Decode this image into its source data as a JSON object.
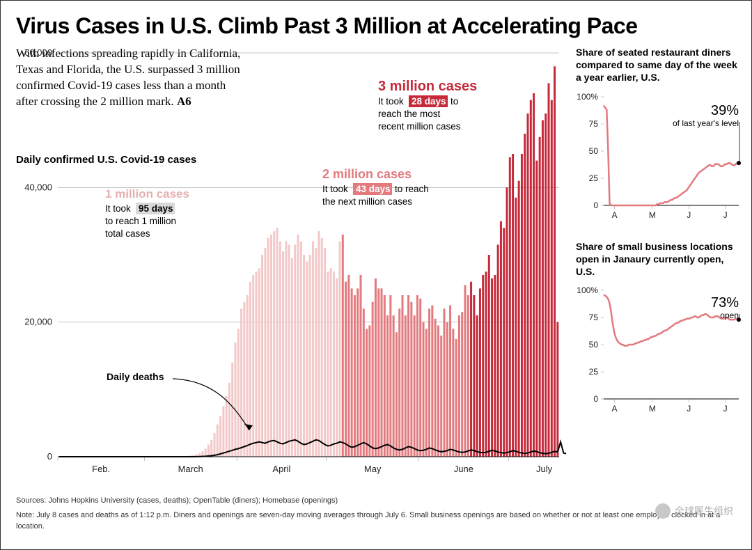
{
  "headline": "Virus Cases in U.S. Climb Past 3 Million at Accelerating Pace",
  "intro": {
    "text": "With infections spreading rapidly in California, Texas and Florida, the U.S. surpassed 3 million confirmed Covid-19 cases less than a month after crossing the 2 million mark.",
    "page_ref": "A6"
  },
  "main_chart": {
    "label": "Daily confirmed U.S. Covid-19 cases",
    "yaxis": {
      "min": 0,
      "max": 60000,
      "ticks": [
        0,
        20000,
        40000,
        60000
      ],
      "tick_labels": [
        "0",
        "20,000",
        "40,000",
        "60,000"
      ]
    },
    "xaxis": {
      "months": [
        "Feb.",
        "March",
        "April",
        "May",
        "June",
        "July"
      ]
    },
    "colors": {
      "phase1": "#f3c8c8",
      "phase2": "#e27a7e",
      "phase3": "#c62a3a",
      "deaths": "#000000",
      "grid": "#888888",
      "bg": "#ffffff"
    },
    "bars": {
      "phase1": [
        0,
        0,
        0,
        0,
        0,
        0,
        0,
        0,
        1,
        1,
        2,
        2,
        3,
        3,
        4,
        5,
        5,
        6,
        6,
        6,
        7,
        8,
        10,
        12,
        14,
        16,
        18,
        22,
        25,
        27,
        29,
        32,
        36,
        40,
        44,
        48,
        52,
        58,
        65,
        72,
        80,
        90,
        100,
        130,
        170,
        240,
        350,
        500,
        800,
        1200,
        1800,
        2500,
        3500,
        4800,
        6000,
        7500,
        9000,
        11000,
        14000,
        17000,
        19000,
        22000,
        23000,
        24000,
        26000,
        27000,
        27500,
        28000,
        30000,
        31000,
        32500,
        33000,
        33500,
        34000,
        32000,
        30500,
        32000,
        31500,
        29500,
        31500,
        33000,
        32000,
        30000,
        29000,
        30000,
        32000,
        31000,
        33500,
        32500,
        31000,
        27500,
        28000,
        27500,
        26500,
        32000
      ],
      "phase2": [
        33000,
        26000,
        27000,
        25000,
        24000,
        25000,
        27000,
        22000,
        19000,
        19500,
        23000,
        26500,
        25000,
        25000,
        24000,
        21000,
        24000,
        21000,
        18500,
        22000,
        24000,
        21000,
        24000,
        23000,
        21000,
        24000,
        23500,
        20000,
        19000,
        22000,
        22500,
        20500,
        19500,
        18000,
        22000,
        20000,
        22500,
        19000,
        17500,
        21000,
        21500,
        25500,
        24000
      ],
      "phase3": [
        26000,
        24000,
        21000,
        25000,
        27000,
        27500,
        30000,
        26500,
        27000,
        31500,
        35000,
        34000,
        40000,
        44500,
        45000,
        38500,
        41000,
        45000,
        48000,
        51000,
        53000,
        54000,
        44000,
        47500,
        50000,
        51000,
        55500,
        53000,
        58000,
        20000
      ],
      "bar_width": 0.7
    },
    "deaths_line": [
      0,
      0,
      0,
      0,
      0,
      0,
      0,
      0,
      0,
      0,
      0,
      0,
      0,
      0,
      0,
      0,
      0,
      0,
      0,
      0,
      0,
      0,
      0,
      0,
      0,
      0,
      0,
      0,
      0,
      0,
      0,
      0,
      0,
      0,
      0,
      0,
      0,
      0,
      0,
      0,
      0,
      0,
      0,
      0,
      0,
      0,
      10,
      25,
      40,
      60,
      100,
      150,
      220,
      300,
      420,
      550,
      680,
      820,
      950,
      1100,
      1200,
      1350,
      1500,
      1650,
      1850,
      2000,
      2100,
      2200,
      2100,
      2000,
      2200,
      2350,
      2400,
      2200,
      2000,
      1900,
      2100,
      2300,
      2400,
      2500,
      2300,
      2000,
      1800,
      1900,
      2100,
      2300,
      2500,
      2400,
      2100,
      1800,
      1600,
      1700,
      1900,
      2000,
      2200,
      2100,
      1900,
      1600,
      1400,
      1500,
      1700,
      1900,
      2100,
      1900,
      1600,
      1300,
      1200,
      1300,
      1500,
      1700,
      1800,
      1600,
      1300,
      1100,
      1000,
      1100,
      1300,
      1500,
      1400,
      1200,
      1000,
      900,
      950,
      1100,
      1300,
      1200,
      1000,
      850,
      750,
      800,
      900,
      1100,
      1000,
      850,
      700,
      650,
      700,
      850,
      1000,
      900,
      750,
      650,
      600,
      650,
      800,
      950,
      850,
      700,
      600,
      550,
      600,
      750,
      900,
      800,
      650,
      550,
      500,
      550,
      700,
      850,
      750,
      600,
      500,
      450,
      500,
      650,
      800,
      700,
      2200,
      550,
      450,
      400,
      450
    ],
    "deaths_label": "Daily deaths",
    "callouts": {
      "c1": {
        "title": "1 million cases",
        "body1": "It took",
        "days": "95 days",
        "body2": "to reach 1 million",
        "body3": "total cases"
      },
      "c2": {
        "title": "2 million cases",
        "body1": "It took",
        "days": "43 days",
        "body2": "to reach",
        "body3": "the next million cases"
      },
      "c3": {
        "title": "3 million cases",
        "body1": "It took",
        "days": "28 days",
        "body2": "to",
        "body3": "reach the most",
        "body4": "recent million cases"
      }
    }
  },
  "side_chart_1": {
    "title": "Share of seated restaurant diners compared to same day of the week a year earlier, U.S.",
    "yaxis": {
      "ticks": [
        0,
        25,
        50,
        75,
        100
      ],
      "labels": [
        "0",
        "25",
        "50",
        "75",
        "100%"
      ]
    },
    "xaxis": {
      "labels": [
        "A",
        "M",
        "J",
        "J"
      ]
    },
    "value": "39%",
    "value_sub": "of last year's level",
    "line_color": "#e27a7e",
    "data": [
      92,
      90,
      88,
      50,
      2,
      0,
      0,
      0,
      0,
      0,
      0,
      0,
      0,
      0,
      0,
      0,
      0,
      0,
      0,
      0,
      0,
      0,
      0,
      0,
      0,
      0,
      0,
      0,
      0,
      0,
      0,
      0,
      0,
      0,
      0,
      0,
      1,
      1,
      2,
      2,
      2,
      3,
      3,
      3,
      4,
      5,
      5,
      6,
      7,
      7,
      8,
      9,
      10,
      11,
      12,
      13,
      14,
      16,
      18,
      20,
      22,
      24,
      26,
      28,
      30,
      31,
      32,
      33,
      34,
      35,
      36,
      37,
      37,
      36,
      36,
      38,
      38,
      38,
      37,
      36,
      36,
      37,
      38,
      38,
      39,
      39,
      38,
      37,
      37,
      38,
      39,
      39
    ]
  },
  "side_chart_2": {
    "title": "Share of small business locations open in Janaury currently open, U.S.",
    "yaxis": {
      "ticks": [
        0,
        25,
        50,
        75,
        100
      ],
      "labels": [
        "0",
        "25",
        "50",
        "75",
        "100%"
      ]
    },
    "xaxis": {
      "labels": [
        "A",
        "M",
        "J",
        "J"
      ]
    },
    "value": "73%",
    "value_sub": "open",
    "line_color": "#e27a7e",
    "data": [
      96,
      95,
      94,
      92,
      88,
      80,
      70,
      62,
      57,
      54,
      52,
      51,
      50,
      50,
      49,
      49,
      49,
      50,
      50,
      50,
      50,
      51,
      51,
      52,
      52,
      53,
      53,
      54,
      54,
      55,
      55,
      56,
      57,
      57,
      58,
      58,
      59,
      60,
      60,
      61,
      62,
      63,
      63,
      64,
      65,
      66,
      67,
      68,
      69,
      70,
      70,
      71,
      72,
      72,
      73,
      73,
      74,
      74,
      74,
      75,
      75,
      76,
      76,
      75,
      75,
      76,
      77,
      77,
      78,
      78,
      77,
      76,
      75,
      75,
      75,
      76,
      76,
      76,
      75,
      74,
      74,
      74,
      75,
      75,
      74,
      73,
      73,
      73,
      73,
      74,
      73,
      73
    ]
  },
  "footnotes": {
    "sources": "Sources: Johns Hopkins University (cases, deaths); OpenTable (diners); Homebase (openings)",
    "note": "Note: July 8 cases and deaths as of 1:12 p.m. Diners and openings are seven-day moving averages through July 6. Small business openings are based on whether or not at least one employee clocked in at a location."
  },
  "watermark": "全球医生组织"
}
